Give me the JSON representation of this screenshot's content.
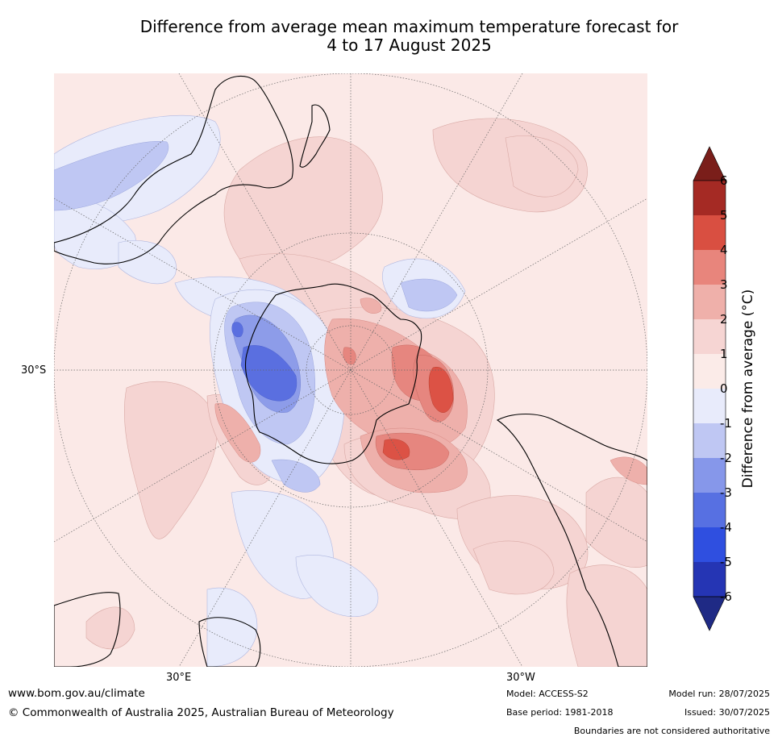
{
  "title_line1": "Difference from average mean maximum temperature forecast for",
  "title_line2": "4 to 17 August 2025",
  "map": {
    "latitude_label": "30°S",
    "longitude_labels": [
      "30°E",
      "30°W"
    ],
    "colors": {
      "ocean_neutral_warm": "#fbe9e7",
      "warm_1": "#f5d4d2",
      "warm_2": "#eeb0ab",
      "warm_3": "#e6867f",
      "warm_4": "#dc5245",
      "cool_1": "#e8ebfb",
      "cool_2": "#bfc7f3",
      "cool_3": "#8d9ce9",
      "cool_4": "#5a6fe0",
      "coast": "#000000",
      "grid": "#666666"
    }
  },
  "colorbar": {
    "label": "Difference from average (°C)",
    "ticks": [
      "6",
      "5",
      "4",
      "3",
      "2",
      "1",
      "0",
      "-1",
      "-2",
      "-3",
      "-4",
      "-5",
      "-6"
    ],
    "colors": [
      "#a52a24",
      "#d94f41",
      "#e8857c",
      "#efb0aa",
      "#f6d5d3",
      "#fbebe8",
      "#e8ebfb",
      "#bfc7f3",
      "#8697ea",
      "#5770e2",
      "#2f4fe0",
      "#2535b4"
    ],
    "over_color": "#7a1e1a",
    "under_color": "#1f2a85"
  },
  "footer": {
    "url": "www.bom.gov.au/climate",
    "copyright": "© Commonwealth of Australia 2025, Australian Bureau of Meteorology",
    "model": "Model: ACCESS-S2",
    "base_period": "Base period: 1981-2018",
    "model_run": "Model run: 28/07/2025",
    "issued": "Issued: 30/07/2025",
    "disclaimer": "Boundaries are not considered authoritative"
  }
}
